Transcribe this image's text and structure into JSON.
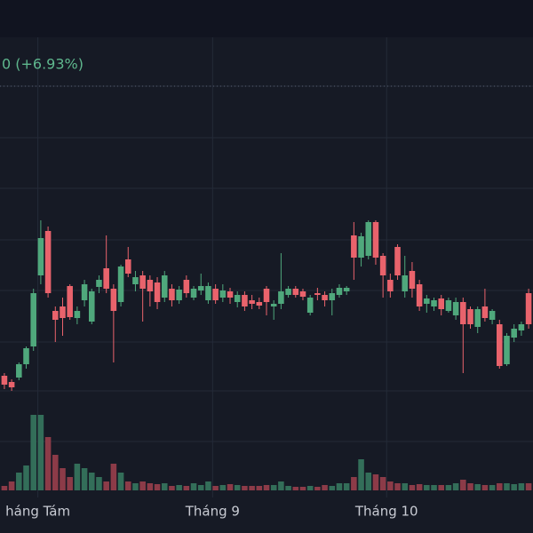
{
  "chart_data": {
    "type": "candlestick",
    "header_text": "0 (+6.93%)",
    "up_color": "#4fa87c",
    "down_color": "#e9636c",
    "volume_up_color": "#336e59",
    "volume_down_color": "#8c3b48",
    "ylim": [
      0,
      518
    ],
    "ygrid": [
      463,
      405,
      348,
      290,
      233,
      175,
      120,
      63
    ],
    "price_line": 463,
    "xlim": [
      -0.6,
      72.6
    ],
    "xticks": [
      {
        "value": 4.6,
        "label": "háng Tám"
      },
      {
        "value": 28.6,
        "label": "Tháng 9"
      },
      {
        "value": 52.5,
        "label": "Tháng 10"
      }
    ],
    "vlim": [
      0,
      100
    ],
    "open": [
      137,
      130,
      135,
      150,
      170,
      250,
      300,
      210,
      215,
      238,
      202,
      222,
      198,
      237,
      258,
      235,
      220,
      268,
      240,
      250,
      245,
      242,
      225,
      235,
      222,
      245,
      225,
      233,
      222,
      235,
      225,
      232,
      220,
      228,
      222,
      220,
      235,
      215,
      218,
      228,
      235,
      232,
      208,
      230,
      228,
      222,
      228,
      232,
      295,
      270,
      272,
      310,
      272,
      245,
      282,
      232,
      255,
      240,
      218,
      215,
      224,
      210,
      205,
      220,
      212,
      192,
      215,
      200,
      195,
      150,
      180,
      188,
      230
    ],
    "high": [
      140,
      133,
      152,
      170,
      235,
      312,
      305,
      215,
      225,
      240,
      215,
      245,
      235,
      250,
      295,
      240,
      262,
      282,
      255,
      255,
      250,
      248,
      255,
      240,
      238,
      250,
      238,
      252,
      242,
      240,
      240,
      236,
      232,
      232,
      228,
      225,
      238,
      222,
      275,
      238,
      238,
      235,
      228,
      236,
      232,
      235,
      240,
      238,
      310,
      298,
      312,
      312,
      275,
      252,
      285,
      272,
      265,
      245,
      228,
      225,
      228,
      225,
      225,
      225,
      215,
      215,
      235,
      212,
      200,
      185,
      195,
      198,
      235
    ],
    "low": [
      122,
      120,
      132,
      145,
      165,
      240,
      225,
      175,
      182,
      200,
      195,
      215,
      195,
      230,
      230,
      152,
      215,
      248,
      232,
      198,
      215,
      212,
      220,
      215,
      218,
      225,
      222,
      228,
      218,
      218,
      220,
      218,
      214,
      210,
      212,
      212,
      205,
      200,
      212,
      225,
      225,
      222,
      205,
      222,
      215,
      205,
      225,
      228,
      245,
      260,
      268,
      262,
      225,
      225,
      245,
      225,
      225,
      210,
      208,
      210,
      205,
      208,
      200,
      140,
      190,
      185,
      198,
      195,
      145,
      148,
      175,
      182,
      190
    ],
    "close": [
      127,
      124,
      150,
      168,
      230,
      292,
      230,
      200,
      202,
      203,
      210,
      240,
      232,
      245,
      235,
      210,
      260,
      252,
      248,
      235,
      232,
      220,
      250,
      222,
      234,
      230,
      235,
      238,
      238,
      222,
      233,
      225,
      228,
      215,
      218,
      216,
      220,
      218,
      232,
      235,
      228,
      226,
      225,
      228,
      222,
      230,
      236,
      236,
      270,
      294,
      310,
      270,
      250,
      232,
      250,
      250,
      235,
      215,
      224,
      222,
      212,
      222,
      220,
      195,
      195,
      212,
      202,
      210,
      148,
      182,
      190,
      195,
      195
    ],
    "volume": [
      5,
      10,
      20,
      28,
      85,
      85,
      60,
      40,
      25,
      15,
      30,
      25,
      20,
      15,
      10,
      30,
      20,
      10,
      8,
      10,
      8,
      7,
      8,
      5,
      6,
      5,
      8,
      6,
      10,
      5,
      6,
      7,
      6,
      5,
      5,
      5,
      6,
      6,
      10,
      5,
      4,
      4,
      5,
      4,
      6,
      5,
      8,
      8,
      15,
      35,
      20,
      18,
      15,
      10,
      8,
      8,
      6,
      7,
      6,
      6,
      6,
      6,
      8,
      12,
      8,
      7,
      6,
      6,
      8,
      8,
      7,
      8,
      8
    ]
  }
}
